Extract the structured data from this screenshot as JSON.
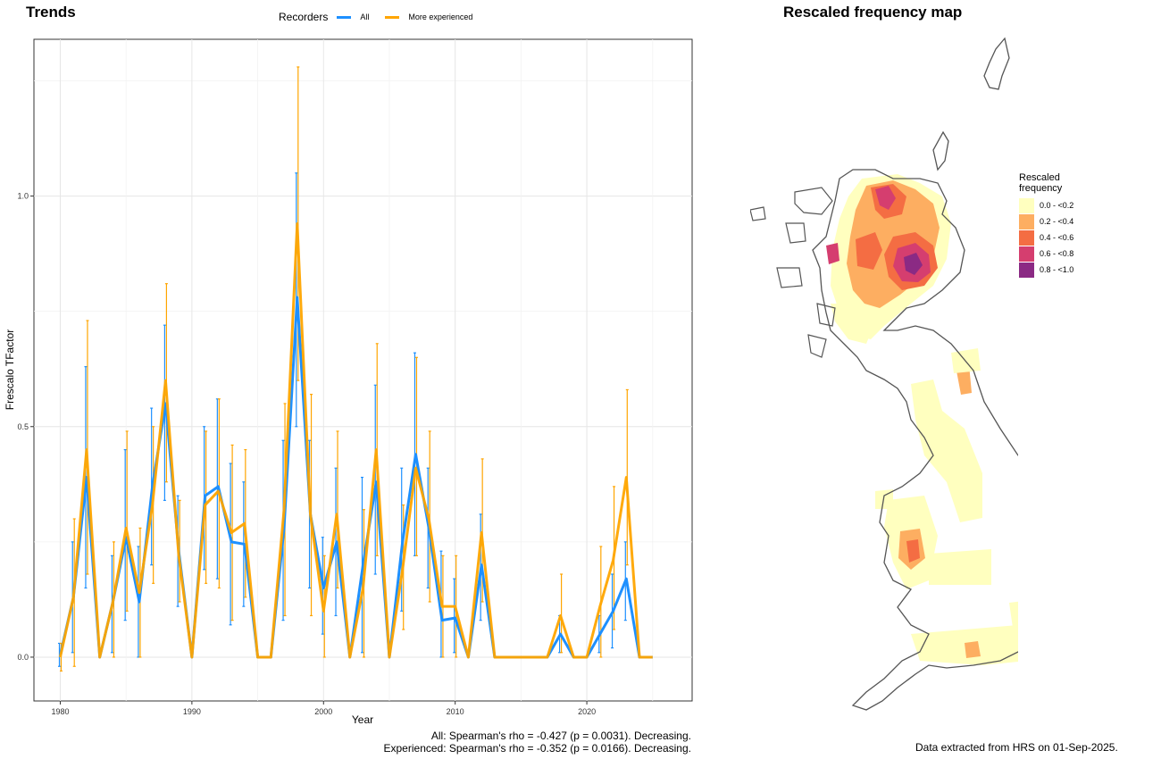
{
  "left_panel": {
    "title": "Trends"
  },
  "right_panel": {
    "title": "Rescaled frequency map"
  },
  "legend": {
    "title": "Recorders",
    "items": [
      {
        "label": "All",
        "color": "#1E90FF"
      },
      {
        "label": "More experienced",
        "color": "#FFA500"
      }
    ]
  },
  "stats": {
    "all": "All: Spearman's rho = -0.427 (p = 0.0031). Decreasing.",
    "experienced": "Experienced: Spearman's rho = -0.352 (p = 0.0166). Decreasing."
  },
  "footer_note": "Data extracted from HRS on 01-Sep-2025.",
  "map_legend": {
    "title_line1": "Rescaled",
    "title_line2": "frequency",
    "items": [
      {
        "label": "0.0 - <0.2",
        "color": "#FFFFBF"
      },
      {
        "label": "0.2 - <0.4",
        "color": "#FDAE61"
      },
      {
        "label": "0.4 - <0.6",
        "color": "#F46D43"
      },
      {
        "label": "0.6 - <0.8",
        "color": "#D53E6F"
      },
      {
        "label": "0.8 - <1.0",
        "color": "#8B2A84"
      }
    ]
  },
  "chart_data": {
    "type": "line",
    "xlabel": "Year",
    "ylabel": "Frescalo TFactor",
    "xlim": [
      1978,
      2028
    ],
    "ylim": [
      -0.095,
      1.34
    ],
    "xticks": [
      1980,
      1990,
      2000,
      2010,
      2020
    ],
    "yticks": [
      0.0,
      0.5,
      1.0
    ],
    "ytick_labels": [
      "0.0",
      "0.5",
      "1.0"
    ],
    "grid": true,
    "series": [
      {
        "name": "All",
        "color": "#1E90FF",
        "x": [
          1980,
          1981,
          1982,
          1983,
          1984,
          1985,
          1986,
          1987,
          1988,
          1989,
          1990,
          1991,
          1992,
          1993,
          1994,
          1995,
          1996,
          1997,
          1998,
          1999,
          2000,
          2001,
          2002,
          2003,
          2004,
          2005,
          2006,
          2007,
          2008,
          2009,
          2010,
          2011,
          2012,
          2013,
          2014,
          2015,
          2016,
          2017,
          2018,
          2019,
          2020,
          2021,
          2022,
          2023,
          2024,
          2025
        ],
        "y": [
          0.005,
          0.13,
          0.39,
          0.0,
          0.12,
          0.26,
          0.12,
          0.37,
          0.55,
          0.23,
          0.0,
          0.35,
          0.37,
          0.25,
          0.245,
          0.0,
          0.0,
          0.28,
          0.78,
          0.31,
          0.15,
          0.25,
          0.0,
          0.2,
          0.38,
          0.0,
          0.25,
          0.44,
          0.28,
          0.08,
          0.085,
          0.0,
          0.2,
          0.0,
          0.0,
          0.0,
          0.0,
          0.0,
          0.05,
          0.0,
          0.0,
          0.05,
          0.1,
          0.17,
          0.0,
          0.0
        ],
        "err_low": [
          -0.02,
          0.01,
          0.15,
          null,
          0.01,
          0.08,
          0.0,
          0.2,
          0.34,
          0.11,
          null,
          0.19,
          0.17,
          0.07,
          0.11,
          null,
          null,
          0.08,
          0.5,
          0.15,
          0.05,
          0.09,
          null,
          0.01,
          0.18,
          null,
          0.1,
          0.22,
          0.15,
          0.0,
          0.01,
          null,
          0.08,
          null,
          null,
          null,
          null,
          null,
          0.01,
          null,
          null,
          0.01,
          0.02,
          0.08,
          null,
          null
        ],
        "err_high": [
          0.03,
          0.25,
          0.63,
          null,
          0.22,
          0.45,
          0.24,
          0.54,
          0.72,
          0.35,
          null,
          0.5,
          0.56,
          0.42,
          0.38,
          null,
          null,
          0.47,
          1.05,
          0.47,
          0.26,
          0.41,
          null,
          0.39,
          0.59,
          null,
          0.41,
          0.66,
          0.41,
          0.23,
          0.17,
          null,
          0.31,
          null,
          null,
          null,
          null,
          null,
          0.09,
          null,
          null,
          0.09,
          0.18,
          0.25,
          null,
          null
        ]
      },
      {
        "name": "More experienced",
        "color": "#FFA500",
        "x": [
          1980,
          1981,
          1982,
          1983,
          1984,
          1985,
          1986,
          1987,
          1988,
          1989,
          1990,
          1991,
          1992,
          1993,
          1994,
          1995,
          1996,
          1997,
          1998,
          1999,
          2000,
          2001,
          2002,
          2003,
          2004,
          2005,
          2006,
          2007,
          2008,
          2009,
          2010,
          2011,
          2012,
          2013,
          2014,
          2015,
          2016,
          2017,
          2018,
          2019,
          2020,
          2021,
          2022,
          2023,
          2024,
          2025
        ],
        "y": [
          0.0,
          0.13,
          0.45,
          0.0,
          0.12,
          0.28,
          0.14,
          0.33,
          0.6,
          0.22,
          0.0,
          0.33,
          0.36,
          0.27,
          0.29,
          0.0,
          0.0,
          0.32,
          0.94,
          0.31,
          0.1,
          0.31,
          0.0,
          0.15,
          0.45,
          0.0,
          0.19,
          0.41,
          0.3,
          0.11,
          0.11,
          0.0,
          0.27,
          0.0,
          0.0,
          0.0,
          0.0,
          0.0,
          0.09,
          0.0,
          0.0,
          0.11,
          0.21,
          0.39,
          0.0,
          0.0
        ],
        "err_low": [
          -0.03,
          -0.02,
          0.18,
          null,
          0.0,
          0.1,
          0.0,
          0.16,
          0.38,
          0.12,
          null,
          0.16,
          0.15,
          0.08,
          0.13,
          null,
          null,
          0.09,
          0.6,
          0.09,
          0.0,
          0.15,
          null,
          0.0,
          0.22,
          null,
          0.06,
          0.22,
          0.12,
          0.0,
          0.0,
          null,
          0.12,
          null,
          null,
          null,
          null,
          null,
          0.01,
          null,
          null,
          0.0,
          0.06,
          0.2,
          null,
          null
        ],
        "err_high": [
          0.03,
          0.3,
          0.73,
          null,
          0.25,
          0.49,
          0.28,
          0.5,
          0.81,
          0.34,
          null,
          0.49,
          0.56,
          0.46,
          0.45,
          null,
          null,
          0.55,
          1.28,
          0.57,
          0.22,
          0.49,
          null,
          0.32,
          0.68,
          null,
          0.33,
          0.65,
          0.49,
          0.22,
          0.22,
          null,
          0.43,
          null,
          null,
          null,
          null,
          null,
          0.18,
          null,
          null,
          0.24,
          0.37,
          0.58,
          null,
          null
        ]
      }
    ]
  }
}
